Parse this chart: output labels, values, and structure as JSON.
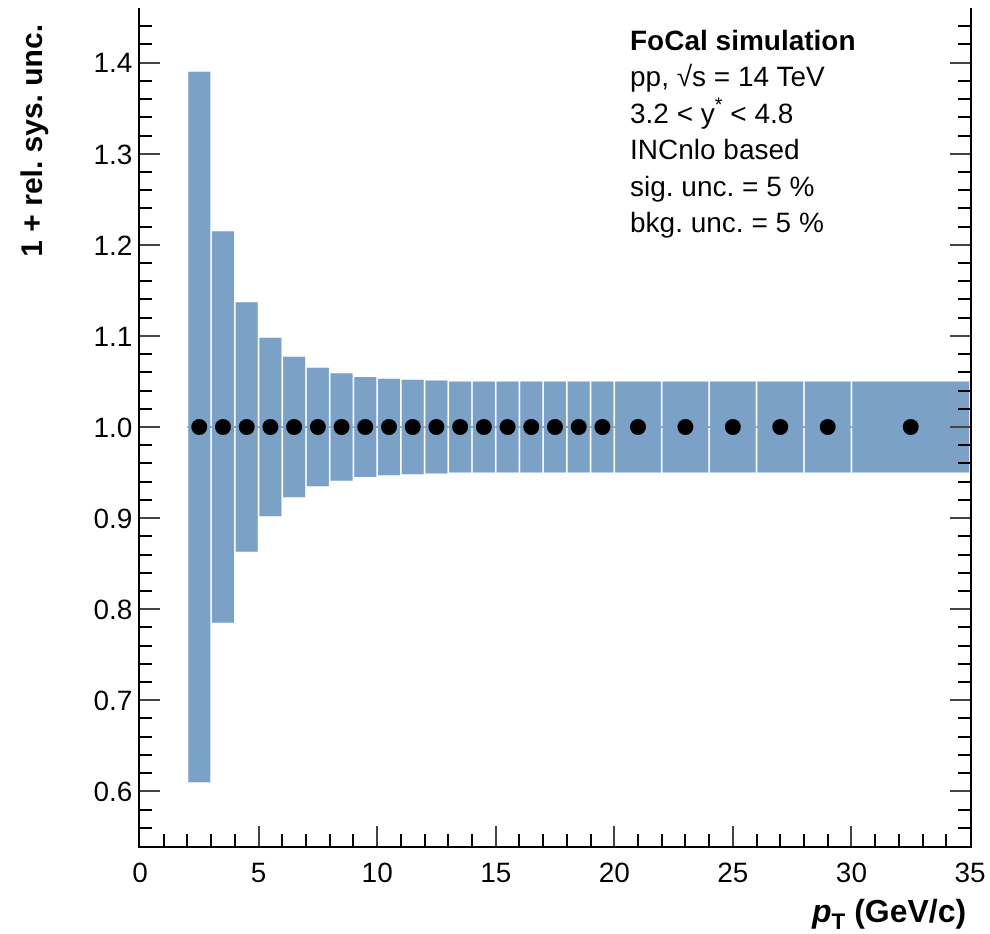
{
  "chart_data": {
    "type": "scatter",
    "xlabel": "p$_{T}$ (GeV/c)",
    "ylabel": "1 + rel. sys. unc.",
    "annotations": [
      "FoCal simulation",
      "pp, √s = 14 TeV",
      "3.2 < y$^{*}$ < 4.8",
      "INCnlo based",
      "sig. unc. = 5 %",
      "bkg. unc. = 5 %"
    ],
    "series": [
      {
        "color": "#000000",
        "marker": "circle",
        "x": [
          2.5,
          3.5,
          4.5,
          5.5,
          6.5,
          7.5,
          8.5,
          9.5,
          10.5,
          11.5,
          12.5,
          13.5,
          14.5,
          15.5,
          16.5,
          17.5,
          18.5,
          19.5,
          21,
          23,
          25,
          27,
          29,
          32.5
        ],
        "values": [
          1.0,
          1.0,
          1.0,
          1.0,
          1.0,
          1.0,
          1.0,
          1.0,
          1.0,
          1.0,
          1.0,
          1.0,
          1.0,
          1.0,
          1.0,
          1.0,
          1.0,
          1.0,
          1.0,
          1.0,
          1.0,
          1.0,
          1.0,
          1.0
        ],
        "errors": [
          0.39,
          0.215,
          0.137,
          0.098,
          0.077,
          0.065,
          0.059,
          0.055,
          0.053,
          0.052,
          0.051,
          0.05,
          0.05,
          0.05,
          0.05,
          0.05,
          0.05,
          0.05,
          0.05,
          0.05,
          0.05,
          0.05,
          0.05,
          0.05
        ],
        "xerrors": [
          0.5,
          0.5,
          0.5,
          0.5,
          0.5,
          0.5,
          0.5,
          0.5,
          0.5,
          0.5,
          0.5,
          0.5,
          0.5,
          0.5,
          0.5,
          0.5,
          0.5,
          0.5,
          1,
          1,
          1,
          1,
          1,
          2.5
        ]
      }
    ],
    "xlim": [
      0,
      35
    ],
    "xticks": [
      0,
      5,
      10,
      15,
      20,
      25,
      30,
      35
    ],
    "ylim": [
      0.54,
      1.46
    ],
    "yticks": [
      0.6,
      0.7,
      0.8,
      0.9,
      {
        "value": 1.0,
        "label": "1.0"
      },
      1.1,
      1.2,
      1.3,
      1.4
    ]
  }
}
